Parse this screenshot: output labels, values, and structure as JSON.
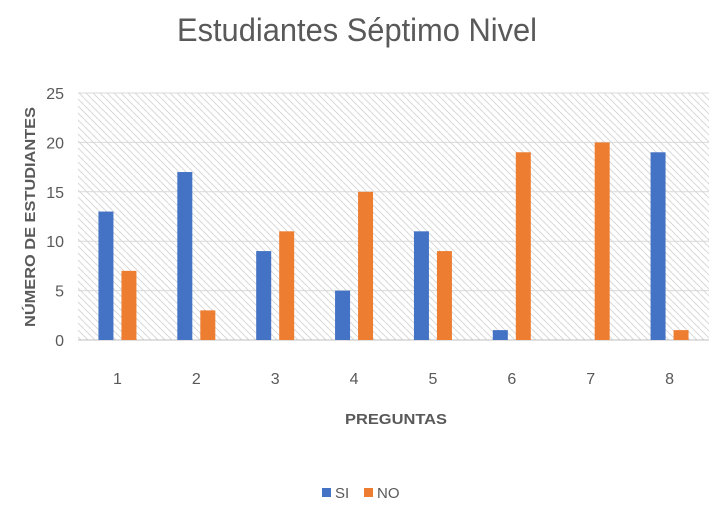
{
  "chart_data": {
    "type": "bar",
    "title": "Estudiantes Séptimo Nivel",
    "xlabel": "PREGUNTAS",
    "ylabel": "NÚMERO DE ESTUDIANTES",
    "categories": [
      "1",
      "2",
      "3",
      "4",
      "5",
      "6",
      "7",
      "8"
    ],
    "ylim": [
      0,
      25
    ],
    "yticks": [
      "0",
      "5",
      "10",
      "15",
      "20",
      "25"
    ],
    "grid": true,
    "legend_position": "bottom",
    "series": [
      {
        "name": "SI",
        "color": "#4472C4",
        "values": [
          13,
          17,
          9,
          5,
          11,
          1,
          0,
          19
        ]
      },
      {
        "name": "NO",
        "color": "#ED7D31",
        "values": [
          7,
          3,
          11,
          15,
          9,
          19,
          20,
          1
        ]
      }
    ]
  }
}
